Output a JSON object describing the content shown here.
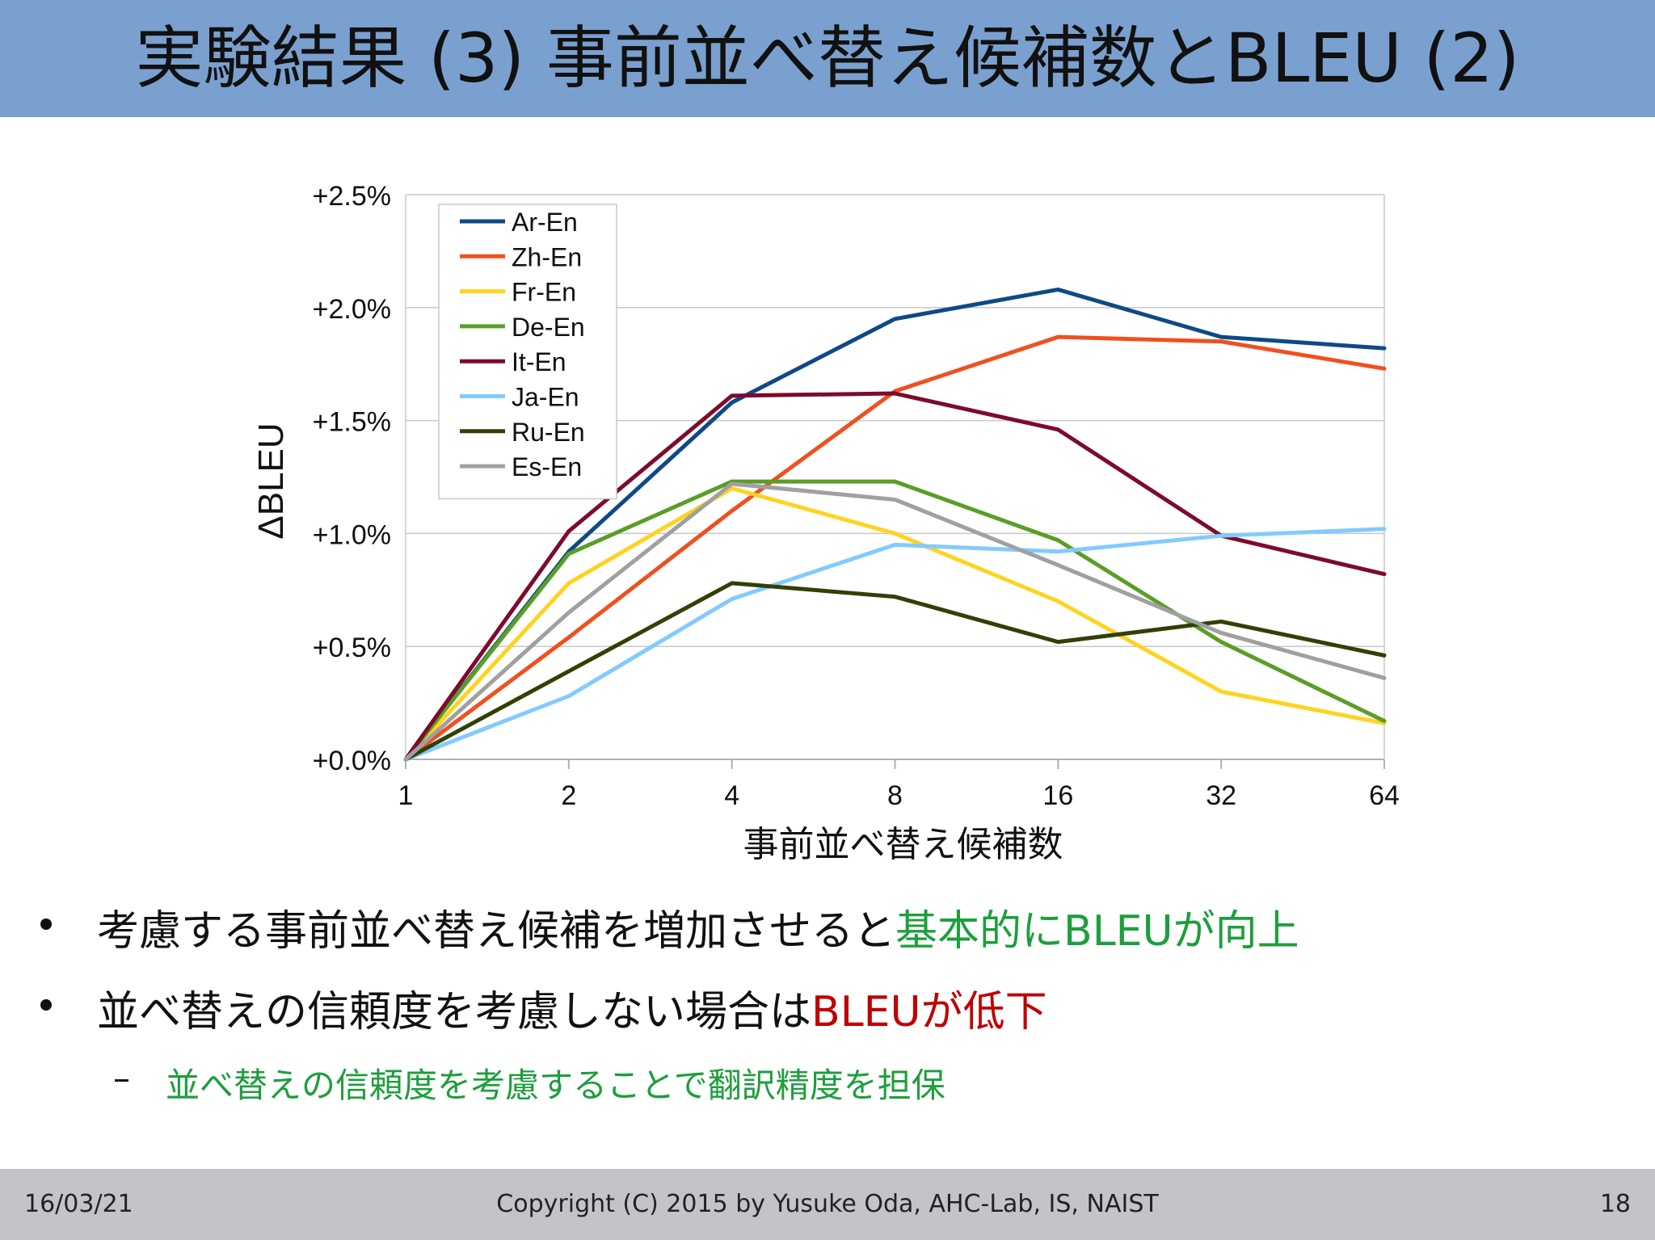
{
  "header": {
    "title": "実験結果 (3) 事前並べ替え候補数とBLEU (2)"
  },
  "chart_data": {
    "type": "line",
    "title": "",
    "xlabel": "事前並べ替え候補数",
    "ylabel": "ΔBLEU",
    "categories": [
      "1",
      "2",
      "4",
      "8",
      "16",
      "32",
      "64"
    ],
    "y_tick_labels": [
      "+0.0%",
      "+0.5%",
      "+1.0%",
      "+1.5%",
      "+2.0%",
      "+2.5%"
    ],
    "ylim": [
      0,
      2.5
    ],
    "grid": true,
    "legend_position": "top-left",
    "series": [
      {
        "name": "Ar-En",
        "color": "#0d4a86",
        "values": [
          0.0,
          0.92,
          1.58,
          1.95,
          2.08,
          1.87,
          1.82
        ]
      },
      {
        "name": "Zh-En",
        "color": "#f0501e",
        "values": [
          0.0,
          0.54,
          1.1,
          1.63,
          1.87,
          1.85,
          1.73
        ]
      },
      {
        "name": "Fr-En",
        "color": "#ffd320",
        "values": [
          0.0,
          0.78,
          1.2,
          1.0,
          0.7,
          0.3,
          0.16
        ]
      },
      {
        "name": "De-En",
        "color": "#5a9e26",
        "values": [
          0.0,
          0.91,
          1.23,
          1.23,
          0.97,
          0.52,
          0.17
        ]
      },
      {
        "name": "It-En",
        "color": "#7e0a2c",
        "values": [
          0.0,
          1.01,
          1.61,
          1.62,
          1.46,
          0.99,
          0.82
        ]
      },
      {
        "name": "Ja-En",
        "color": "#83caff",
        "values": [
          0.0,
          0.28,
          0.71,
          0.95,
          0.92,
          0.99,
          1.02
        ]
      },
      {
        "name": "Ru-En",
        "color": "#314004",
        "values": [
          0.0,
          0.39,
          0.78,
          0.72,
          0.52,
          0.61,
          0.46
        ]
      },
      {
        "name": "Es-En",
        "color": "#a0a0a0",
        "values": [
          0.0,
          0.65,
          1.22,
          1.15,
          0.86,
          0.56,
          0.36
        ]
      }
    ]
  },
  "bullets": [
    {
      "prefix": "考慮する事前並べ替え候補を増加させると",
      "highlight": "基本的にBLEUが向上",
      "highlight_color": "#1e9e3c"
    },
    {
      "prefix": "並べ替えの信頼度を考慮しない場合は",
      "highlight": "BLEUが低下",
      "highlight_color": "#c00000"
    }
  ],
  "sub_bullet": {
    "dash": "–",
    "text": "並べ替えの信頼度を考慮することで翻訳精度を担保",
    "color": "#1e9e3c"
  },
  "footer": {
    "date": "16/03/21",
    "copyright": "Copyright (C) 2015 by Yusuke Oda, AHC-Lab, IS, NAIST",
    "page": "18"
  }
}
